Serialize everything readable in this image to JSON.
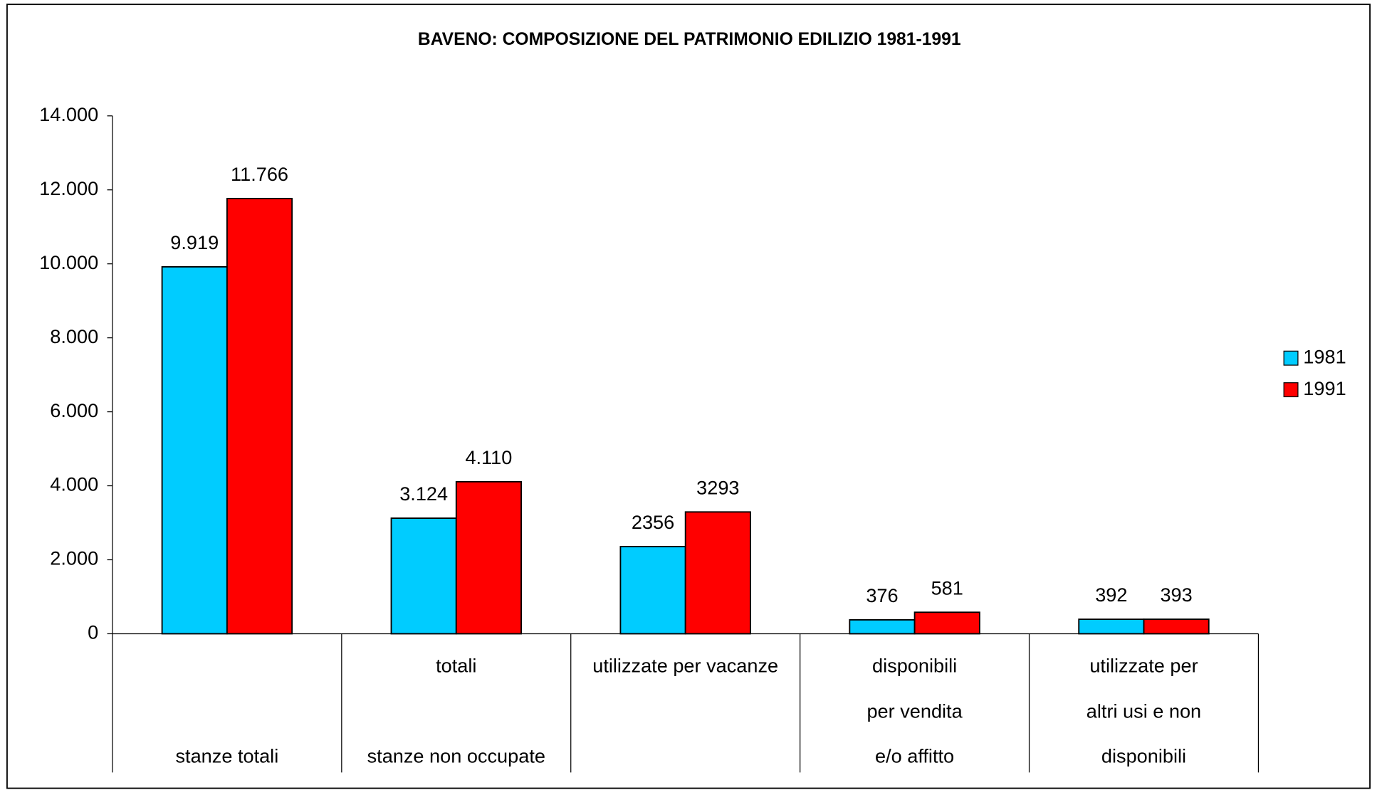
{
  "chart_data": {
    "type": "bar",
    "title": "BAVENO: COMPOSIZIONE DEL PATRIMONIO EDILIZIO 1981-1991",
    "categories": [
      [
        null,
        null,
        "stanze totali"
      ],
      [
        "totali",
        null,
        "stanze non occupate"
      ],
      [
        "utilizzate per vacanze",
        null,
        null
      ],
      [
        "disponibili",
        "per vendita",
        "e/o affitto"
      ],
      [
        "utilizzate per",
        "altri usi e non",
        "disponibili"
      ]
    ],
    "series": [
      {
        "name": "1981",
        "color": "#00ccff",
        "values": [
          9919,
          3124,
          2356,
          376,
          392
        ],
        "value_labels": [
          "9.919",
          "3.124",
          "2356",
          "376",
          "392"
        ]
      },
      {
        "name": "1991",
        "color": "#ff0000",
        "values": [
          11766,
          4110,
          3293,
          581,
          393
        ],
        "value_labels": [
          "11.766",
          "4.110",
          "3293",
          "581",
          "393"
        ]
      }
    ],
    "ylim": [
      0,
      14000
    ],
    "yticks": [
      0,
      {
        "value": 2000,
        "label": "2.000"
      },
      {
        "value": 4000,
        "label": "4.000"
      },
      {
        "value": 6000,
        "label": "6.000"
      },
      {
        "value": 8000,
        "label": "8.000"
      },
      {
        "value": 10000,
        "label": "10.000"
      },
      {
        "value": 12000,
        "label": "12.000"
      },
      {
        "value": 14000,
        "label": "14.000"
      }
    ],
    "legend": "right"
  }
}
